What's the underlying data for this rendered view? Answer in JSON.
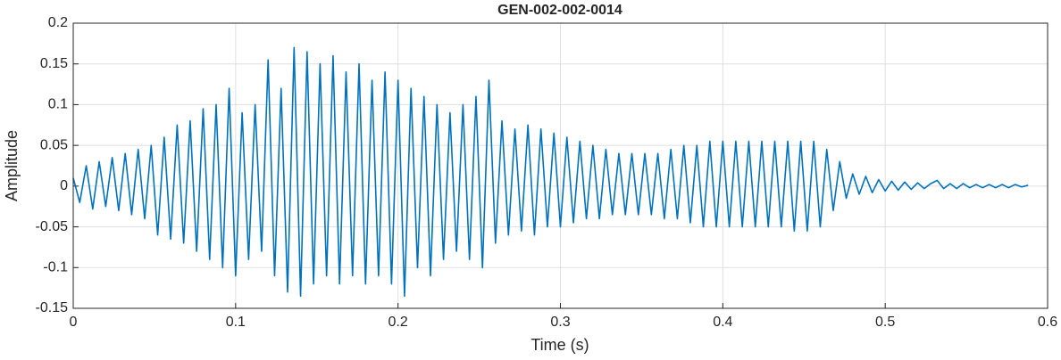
{
  "chart_data": {
    "type": "line",
    "title": "GEN-002-002-0014",
    "x_label": "Time (s)",
    "y_label": "Amplitude",
    "grid": true,
    "xlim": [
      0,
      0.6
    ],
    "xticks": [
      0,
      0.1,
      0.2,
      0.3,
      0.4,
      0.5,
      0.6
    ],
    "ylim": [
      -0.15,
      0.2
    ],
    "yticks": [
      0.2,
      0.15,
      0.1,
      0.05,
      0,
      -0.05,
      -0.1,
      -0.15
    ],
    "x": [
      0,
      0.004,
      0.008,
      0.012,
      0.016,
      0.02,
      0.024,
      0.028,
      0.032,
      0.036,
      0.04,
      0.044,
      0.048,
      0.052,
      0.056,
      0.06,
      0.064,
      0.068,
      0.072,
      0.076,
      0.08,
      0.084,
      0.088,
      0.092,
      0.096,
      0.1,
      0.104,
      0.108,
      0.112,
      0.116,
      0.12,
      0.124,
      0.128,
      0.132,
      0.136,
      0.14,
      0.144,
      0.148,
      0.152,
      0.156,
      0.16,
      0.164,
      0.168,
      0.172,
      0.176,
      0.18,
      0.184,
      0.188,
      0.192,
      0.196,
      0.2,
      0.204,
      0.208,
      0.212,
      0.216,
      0.22,
      0.224,
      0.228,
      0.232,
      0.236,
      0.24,
      0.244,
      0.248,
      0.252,
      0.256,
      0.26,
      0.264,
      0.268,
      0.272,
      0.276,
      0.28,
      0.284,
      0.288,
      0.292,
      0.296,
      0.3,
      0.304,
      0.308,
      0.312,
      0.316,
      0.32,
      0.324,
      0.328,
      0.332,
      0.336,
      0.34,
      0.344,
      0.348,
      0.352,
      0.356,
      0.36,
      0.364,
      0.368,
      0.372,
      0.376,
      0.38,
      0.384,
      0.388,
      0.392,
      0.396,
      0.4,
      0.404,
      0.408,
      0.412,
      0.416,
      0.42,
      0.424,
      0.428,
      0.432,
      0.436,
      0.44,
      0.444,
      0.448,
      0.452,
      0.456,
      0.46,
      0.464,
      0.468,
      0.472,
      0.476,
      0.48,
      0.484,
      0.488,
      0.492,
      0.496,
      0.5,
      0.504,
      0.508,
      0.512,
      0.516,
      0.52,
      0.524,
      0.528,
      0.532,
      0.536,
      0.54,
      0.544,
      0.548,
      0.552,
      0.556,
      0.56,
      0.564,
      0.568,
      0.572,
      0.576,
      0.58,
      0.584,
      0.588
    ],
    "series": [
      {
        "color": "#0072bd",
        "values": [
          0.01,
          -0.02,
          0.025,
          -0.028,
          0.03,
          -0.025,
          0.035,
          -0.03,
          0.04,
          -0.035,
          0.045,
          -0.04,
          0.05,
          -0.06,
          0.06,
          -0.065,
          0.075,
          -0.07,
          0.08,
          -0.08,
          0.095,
          -0.09,
          0.1,
          -0.1,
          0.12,
          -0.11,
          0.09,
          -0.09,
          0.1,
          -0.08,
          0.155,
          -0.11,
          0.12,
          -0.13,
          0.17,
          -0.135,
          0.165,
          -0.12,
          0.15,
          -0.11,
          0.16,
          -0.12,
          0.14,
          -0.11,
          0.15,
          -0.12,
          0.13,
          -0.11,
          0.14,
          -0.12,
          0.13,
          -0.135,
          0.12,
          -0.1,
          0.11,
          -0.11,
          0.1,
          -0.09,
          0.09,
          -0.08,
          0.1,
          -0.09,
          0.11,
          -0.1,
          0.13,
          -0.07,
          0.08,
          -0.06,
          0.07,
          -0.055,
          0.075,
          -0.06,
          0.07,
          -0.05,
          0.065,
          -0.05,
          0.06,
          -0.045,
          0.055,
          -0.04,
          0.05,
          -0.04,
          0.045,
          -0.035,
          0.04,
          -0.035,
          0.04,
          -0.035,
          0.04,
          -0.035,
          0.04,
          -0.04,
          0.045,
          -0.04,
          0.05,
          -0.045,
          0.05,
          -0.05,
          0.055,
          -0.05,
          0.055,
          -0.05,
          0.055,
          -0.05,
          0.055,
          -0.05,
          0.055,
          -0.05,
          0.055,
          -0.05,
          0.055,
          -0.055,
          0.055,
          -0.055,
          0.055,
          -0.05,
          0.045,
          -0.03,
          0.03,
          -0.015,
          0.015,
          -0.01,
          0.012,
          -0.008,
          0.008,
          -0.006,
          0.006,
          -0.005,
          0.005,
          -0.004,
          0.004,
          -0.003,
          0.003,
          0.007,
          -0.003,
          0.003,
          -0.003,
          0.003,
          -0.002,
          0.002,
          -0.002,
          0.002,
          -0.002,
          0.002,
          -0.002,
          0.002,
          -0.001,
          0.001
        ]
      }
    ]
  }
}
